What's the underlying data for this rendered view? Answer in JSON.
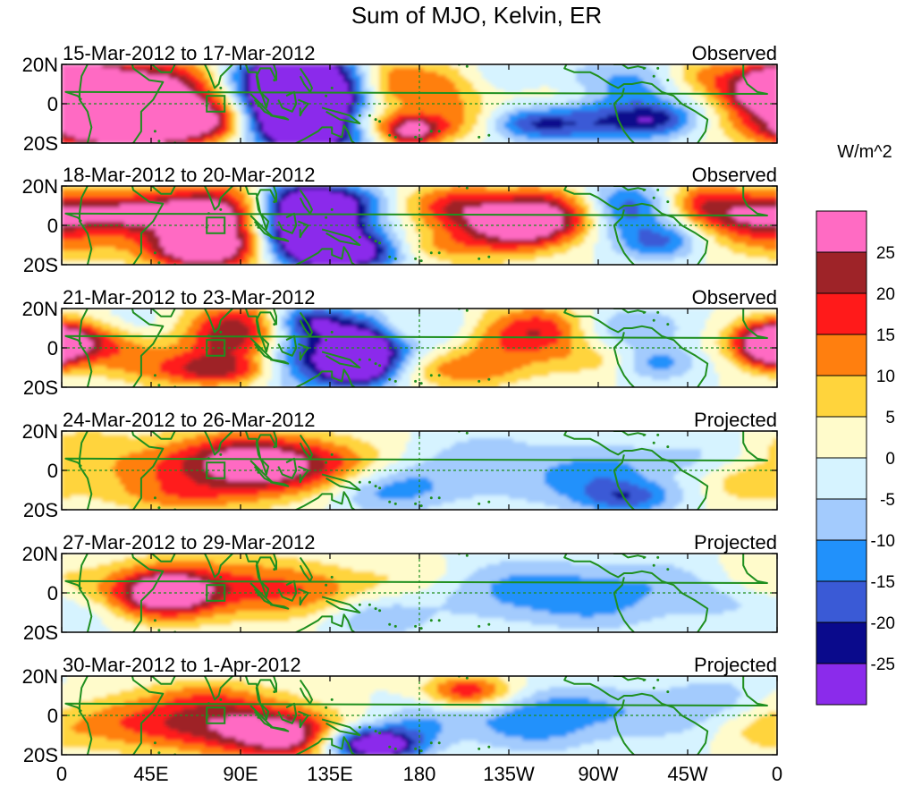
{
  "colors": {
    "palette": [
      "#8B2BEB",
      "#0A0A8C",
      "#3A5AD6",
      "#2191FB",
      "#A3CBFD",
      "#D6F3FF",
      "#FFFBCB",
      "#FFD43C",
      "#FF7F0F",
      "#FF1A1A",
      "#9E2328",
      "#FF6BC3"
    ],
    "coast": "#1F8F1F",
    "frame": "#000000",
    "background": "#FFFFFF"
  },
  "chart_data": {
    "type": "heatmap",
    "title": "Sum of MJO, Kelvin, ER",
    "units": "W/m^2",
    "x_ticks": [
      "0",
      "45E",
      "90E",
      "135E",
      "180",
      "135W",
      "90W",
      "45W",
      "0"
    ],
    "x_tick_values": [
      0,
      45,
      90,
      135,
      180,
      225,
      270,
      315,
      360
    ],
    "y_ticks": [
      "20N",
      "0",
      "20S"
    ],
    "y_tick_values": [
      20,
      0,
      -20
    ],
    "xlim": [
      0,
      360
    ],
    "ylim": [
      -20,
      20
    ],
    "colorbar_labels": [
      "25",
      "20",
      "15",
      "10",
      "5",
      "0",
      "-5",
      "-10",
      "-15",
      "-20",
      "-25"
    ],
    "levels": [
      -25,
      -20,
      -15,
      -10,
      -5,
      0,
      5,
      10,
      15,
      20,
      25
    ],
    "panels": [
      {
        "label": "15-Mar-2012 to 17-Mar-2012",
        "status": "Observed",
        "blobs": [
          [
            10,
            10,
            12,
            8,
            30
          ],
          [
            35,
            8,
            22,
            10,
            28
          ],
          [
            45,
            -10,
            28,
            8,
            32
          ],
          [
            20,
            -14,
            25,
            6,
            20
          ],
          [
            70,
            8,
            20,
            12,
            14
          ],
          [
            85,
            -8,
            20,
            8,
            12
          ],
          [
            112,
            4,
            18,
            14,
            -30
          ],
          [
            130,
            2,
            26,
            18,
            -35
          ],
          [
            122,
            -10,
            18,
            8,
            -22
          ],
          [
            162,
            10,
            14,
            12,
            20
          ],
          [
            175,
            -14,
            12,
            6,
            30
          ],
          [
            148,
            -8,
            12,
            6,
            16
          ],
          [
            195,
            8,
            20,
            10,
            16
          ],
          [
            215,
            12,
            16,
            8,
            -10
          ],
          [
            235,
            -10,
            16,
            6,
            -16
          ],
          [
            270,
            -10,
            22,
            8,
            -16
          ],
          [
            285,
            10,
            24,
            10,
            -12
          ],
          [
            300,
            -8,
            14,
            6,
            -16
          ],
          [
            320,
            14,
            14,
            8,
            12
          ],
          [
            350,
            6,
            14,
            10,
            28
          ],
          [
            250,
            4,
            18,
            6,
            6
          ],
          [
            90,
            14,
            18,
            6,
            -6
          ],
          [
            200,
            -10,
            16,
            6,
            8
          ]
        ]
      },
      {
        "label": "18-Mar-2012 to 20-Mar-2012",
        "status": "Observed",
        "blobs": [
          [
            30,
            6,
            30,
            8,
            25
          ],
          [
            80,
            -2,
            22,
            16,
            32
          ],
          [
            65,
            -12,
            18,
            6,
            16
          ],
          [
            118,
            6,
            16,
            14,
            -28
          ],
          [
            130,
            -6,
            22,
            12,
            -30
          ],
          [
            150,
            -14,
            18,
            6,
            -20
          ],
          [
            140,
            12,
            16,
            6,
            -16
          ],
          [
            200,
            10,
            20,
            8,
            18
          ],
          [
            215,
            -4,
            22,
            10,
            12
          ],
          [
            235,
            0,
            18,
            8,
            22
          ],
          [
            258,
            6,
            16,
            8,
            14
          ],
          [
            240,
            14,
            14,
            6,
            8
          ],
          [
            282,
            8,
            16,
            10,
            -20
          ],
          [
            300,
            -10,
            14,
            6,
            -12
          ],
          [
            345,
            4,
            20,
            10,
            18
          ],
          [
            322,
            12,
            12,
            8,
            12
          ],
          [
            180,
            -12,
            20,
            6,
            8
          ],
          [
            310,
            -4,
            14,
            6,
            -6
          ],
          [
            10,
            -12,
            20,
            6,
            6
          ]
        ]
      },
      {
        "label": "21-Mar-2012 to 23-Mar-2012",
        "status": "Observed",
        "blobs": [
          [
            5,
            4,
            20,
            8,
            26
          ],
          [
            40,
            -8,
            20,
            8,
            8
          ],
          [
            90,
            6,
            20,
            12,
            30
          ],
          [
            80,
            -12,
            22,
            6,
            18
          ],
          [
            125,
            14,
            14,
            6,
            -20
          ],
          [
            122,
            -4,
            24,
            12,
            -25
          ],
          [
            155,
            0,
            14,
            10,
            -28
          ],
          [
            148,
            -12,
            12,
            6,
            -16
          ],
          [
            172,
            10,
            10,
            6,
            12
          ],
          [
            190,
            10,
            16,
            8,
            -12
          ],
          [
            222,
            4,
            26,
            12,
            14
          ],
          [
            245,
            10,
            16,
            8,
            12
          ],
          [
            285,
            10,
            22,
            8,
            -10
          ],
          [
            300,
            -8,
            14,
            6,
            -12
          ],
          [
            355,
            0,
            10,
            8,
            22
          ],
          [
            200,
            -12,
            20,
            6,
            10
          ],
          [
            30,
            12,
            20,
            6,
            -6
          ],
          [
            270,
            -6,
            16,
            6,
            6
          ]
        ]
      },
      {
        "label": "24-Mar-2012 to 26-Mar-2012",
        "status": "Projected",
        "blobs": [
          [
            30,
            0,
            30,
            10,
            6
          ],
          [
            75,
            2,
            30,
            12,
            13
          ],
          [
            95,
            6,
            22,
            10,
            14
          ],
          [
            110,
            0,
            22,
            10,
            10
          ],
          [
            140,
            2,
            22,
            10,
            12
          ],
          [
            160,
            -10,
            20,
            8,
            -12
          ],
          [
            185,
            -4,
            24,
            10,
            -6
          ],
          [
            215,
            10,
            20,
            8,
            -6
          ],
          [
            240,
            -6,
            24,
            10,
            -6
          ],
          [
            272,
            0,
            20,
            10,
            -10
          ],
          [
            285,
            -14,
            18,
            6,
            -16
          ],
          [
            320,
            6,
            20,
            8,
            -6
          ],
          [
            345,
            -6,
            16,
            8,
            8
          ],
          [
            60,
            -14,
            24,
            6,
            8
          ],
          [
            10,
            14,
            14,
            6,
            6
          ]
        ]
      },
      {
        "label": "27-Mar-2012 to 29-Mar-2012",
        "status": "Projected",
        "blobs": [
          [
            40,
            0,
            24,
            10,
            14
          ],
          [
            55,
            0,
            16,
            8,
            20
          ],
          [
            80,
            4,
            28,
            12,
            10
          ],
          [
            110,
            2,
            22,
            10,
            8
          ],
          [
            140,
            -2,
            22,
            10,
            8
          ],
          [
            180,
            8,
            18,
            8,
            6
          ],
          [
            155,
            -12,
            18,
            8,
            -12
          ],
          [
            205,
            0,
            28,
            12,
            -6
          ],
          [
            240,
            4,
            24,
            10,
            -8
          ],
          [
            270,
            -6,
            24,
            10,
            -10
          ],
          [
            300,
            8,
            20,
            8,
            -6
          ],
          [
            330,
            -4,
            20,
            8,
            -6
          ],
          [
            10,
            -10,
            16,
            8,
            -6
          ],
          [
            350,
            8,
            16,
            8,
            4
          ]
        ]
      },
      {
        "label": "30-Mar-2012 to 1-Apr-2012",
        "status": "Projected",
        "blobs": [
          [
            50,
            -4,
            24,
            10,
            12
          ],
          [
            85,
            -2,
            24,
            12,
            10
          ],
          [
            100,
            -8,
            26,
            10,
            14
          ],
          [
            120,
            -12,
            18,
            8,
            20
          ],
          [
            148,
            -14,
            18,
            6,
            -24
          ],
          [
            162,
            -16,
            14,
            6,
            -18
          ],
          [
            180,
            -4,
            14,
            8,
            -8
          ],
          [
            205,
            12,
            16,
            6,
            22
          ],
          [
            215,
            2,
            24,
            10,
            -6
          ],
          [
            240,
            -6,
            22,
            10,
            -10
          ],
          [
            260,
            6,
            20,
            8,
            -6
          ],
          [
            300,
            0,
            24,
            10,
            -8
          ],
          [
            330,
            10,
            16,
            8,
            -6
          ],
          [
            350,
            -8,
            16,
            8,
            6
          ],
          [
            20,
            -4,
            20,
            10,
            6
          ],
          [
            70,
            10,
            20,
            6,
            6
          ]
        ]
      }
    ]
  }
}
